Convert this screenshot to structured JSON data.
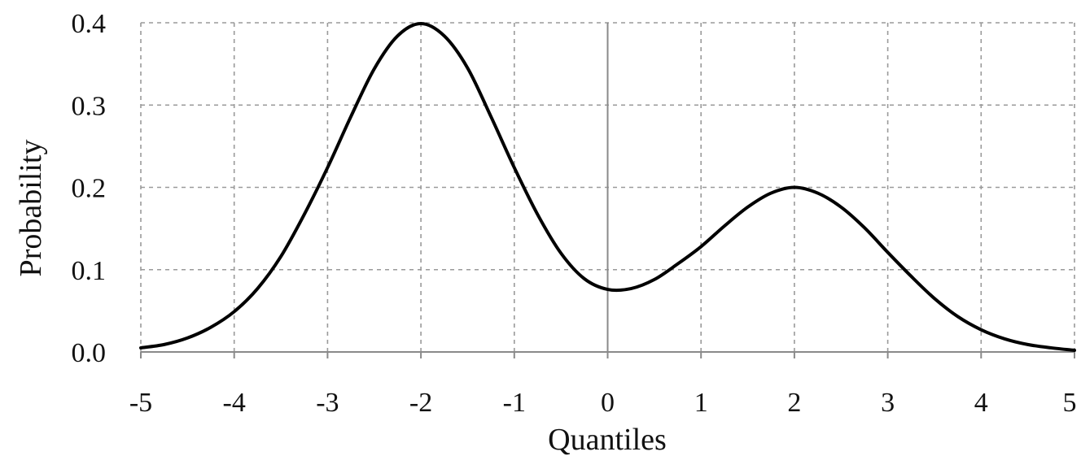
{
  "chart_data": {
    "type": "line",
    "title": "",
    "xlabel": "Quantiles",
    "ylabel": "Probability",
    "xlim": [
      -5,
      5
    ],
    "ylim": [
      0,
      0.4
    ],
    "xticks": [
      -5,
      -4,
      -3,
      -2,
      -1,
      0,
      1,
      2,
      3,
      4,
      5
    ],
    "xtick_labels": [
      "-5",
      "-4",
      "-3",
      "-2",
      "-1",
      "0",
      "1",
      "2",
      "3",
      "4",
      "5"
    ],
    "yticks": [
      0,
      0.1,
      0.2,
      0.3,
      0.4
    ],
    "ytick_labels": [
      "0.0",
      "0.1",
      "0.2",
      "0.3",
      "0.4"
    ],
    "grid": true,
    "grid_style": "dashed",
    "line_color": "#000000",
    "series": [
      {
        "x": [
          -5.0,
          -4.75,
          -4.5,
          -4.25,
          -4.0,
          -3.75,
          -3.5,
          -3.25,
          -3.0,
          -2.75,
          -2.5,
          -2.25,
          -2.0,
          -1.75,
          -1.5,
          -1.25,
          -1.0,
          -0.75,
          -0.5,
          -0.25,
          0.0,
          0.25,
          0.5,
          0.75,
          1.0,
          1.25,
          1.5,
          1.75,
          2.0,
          2.25,
          2.5,
          2.75,
          3.0,
          3.25,
          3.5,
          3.75,
          4.0,
          4.25,
          4.5,
          4.75,
          5.0
        ],
        "y": [
          0.005,
          0.009,
          0.017,
          0.03,
          0.049,
          0.077,
          0.116,
          0.167,
          0.224,
          0.286,
          0.344,
          0.384,
          0.399,
          0.384,
          0.345,
          0.286,
          0.224,
          0.167,
          0.12,
          0.089,
          0.076,
          0.077,
          0.088,
          0.107,
          0.128,
          0.153,
          0.176,
          0.193,
          0.2,
          0.193,
          0.176,
          0.151,
          0.121,
          0.092,
          0.065,
          0.043,
          0.027,
          0.016,
          0.009,
          0.005,
          0.002
        ]
      }
    ]
  }
}
